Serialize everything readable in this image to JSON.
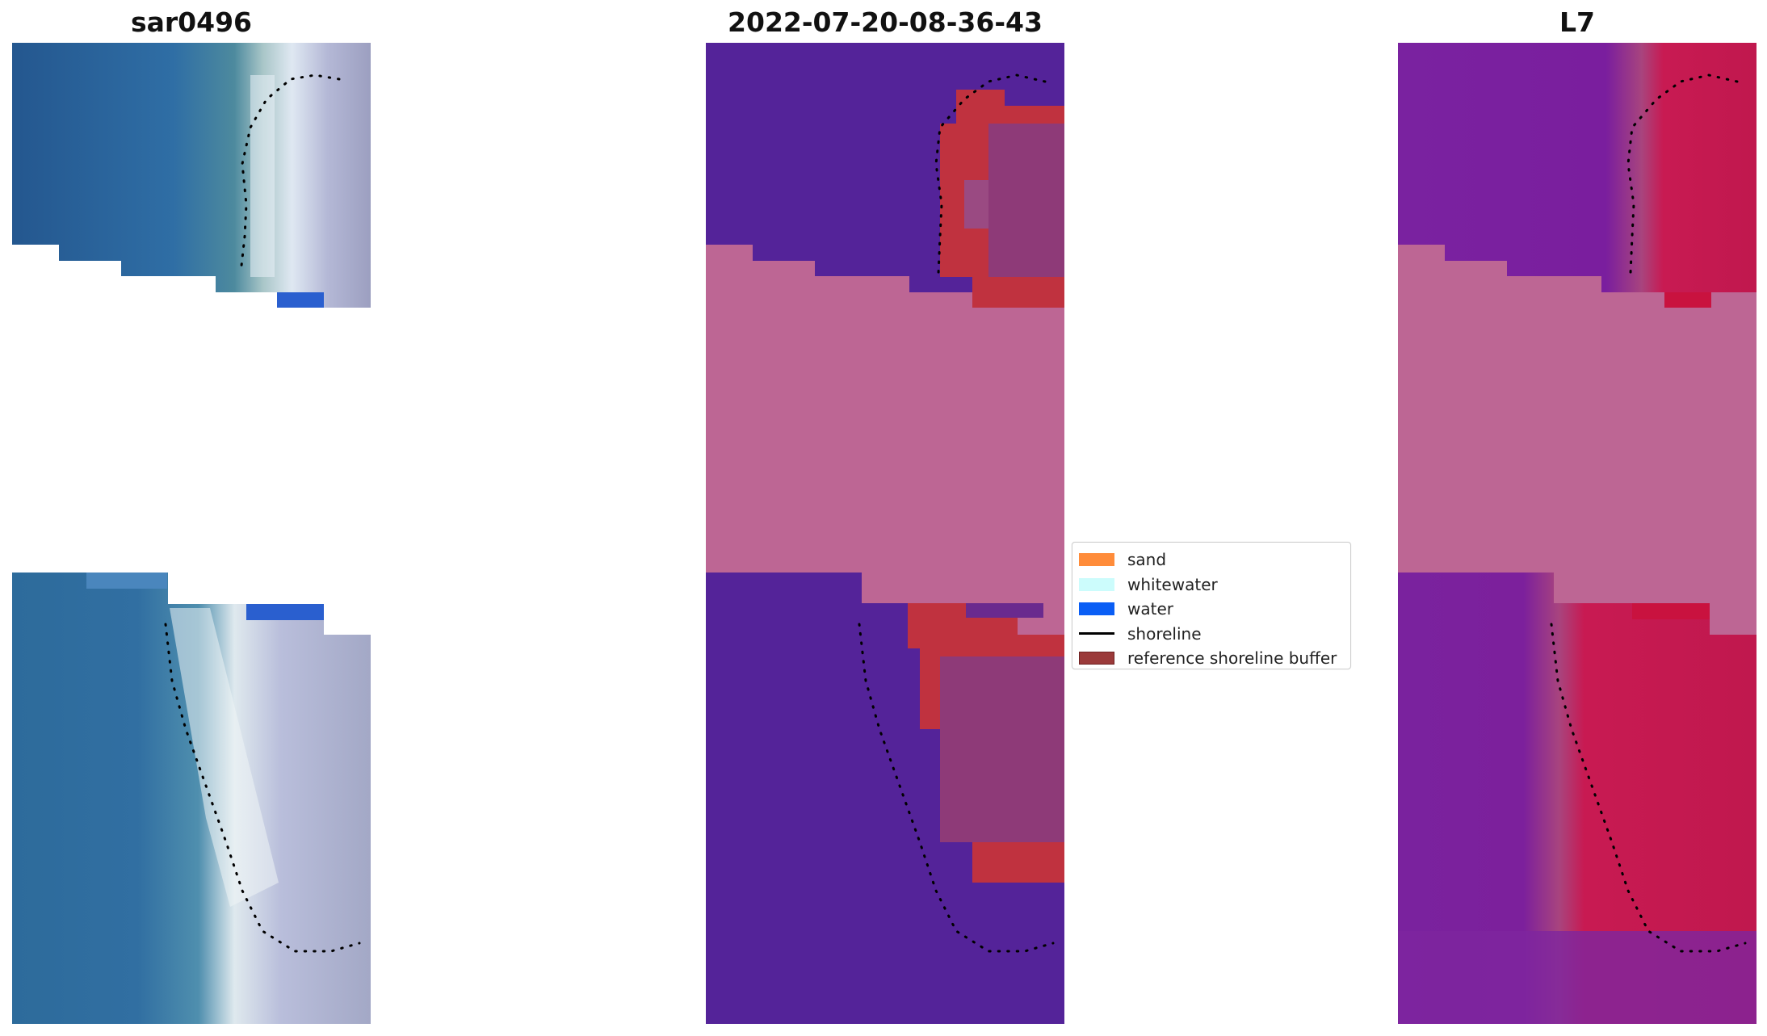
{
  "panels": [
    {
      "title": "sar0496"
    },
    {
      "title": "2022-07-20-08-36-43"
    },
    {
      "title": "L7"
    }
  ],
  "legend": {
    "items": [
      {
        "label": "sand",
        "color": "#ff8c3a"
      },
      {
        "label": "whitewater",
        "color": "#ccfcfc"
      },
      {
        "label": "water",
        "color": "#0a5ef5"
      },
      {
        "label": "shoreline",
        "color": "#000000"
      },
      {
        "label": "reference shoreline buffer",
        "color": "#9b3a3a"
      }
    ]
  },
  "colors": {
    "nodata": "#bd6694",
    "class_water": "#542399",
    "buffer": "#c0323f",
    "rgb_sea": "#2f6ea8",
    "mndwi_water": "#7a1aa0",
    "mndwi_land": "#c71a50"
  }
}
